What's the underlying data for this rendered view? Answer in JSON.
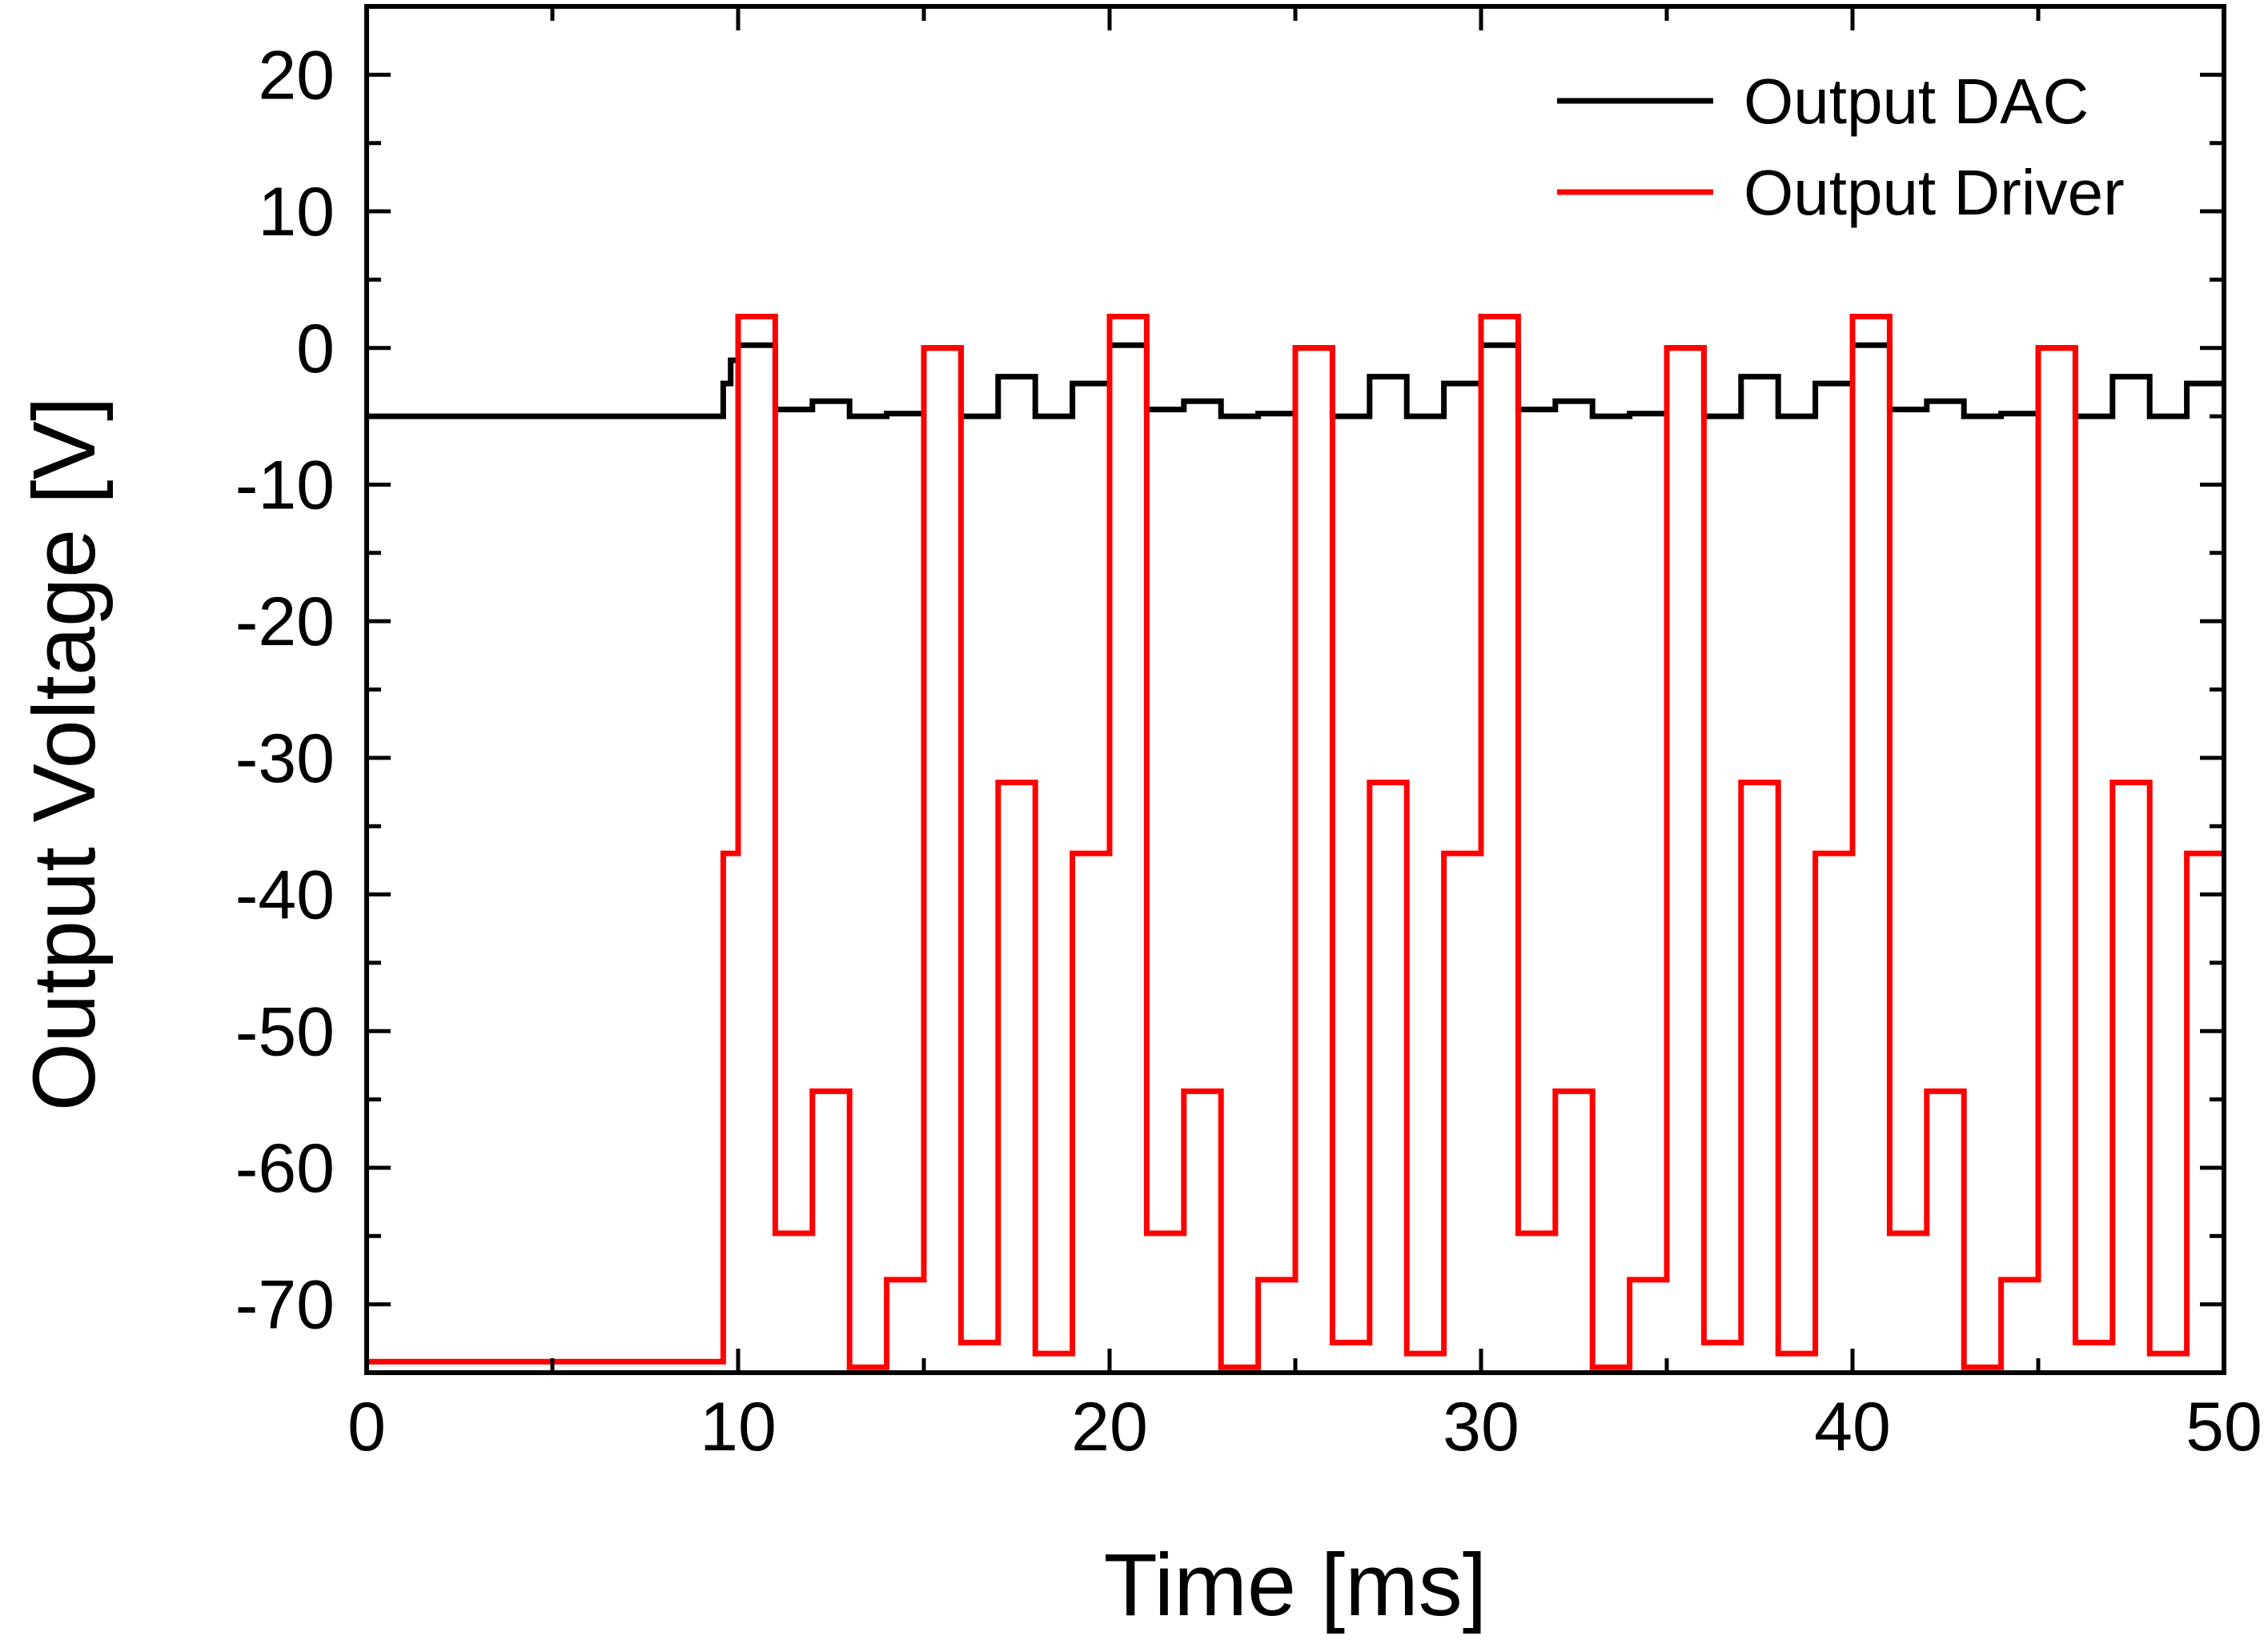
{
  "chart_data": {
    "type": "line",
    "title": "",
    "xlabel": "Time [ms]",
    "ylabel": "Output Voltage [V]",
    "xlim": [
      0,
      50
    ],
    "ylim": [
      -75,
      25
    ],
    "x_ticks": [
      0,
      10,
      20,
      30,
      40,
      50
    ],
    "x_tick_labels": [
      "0",
      "10",
      "20",
      "30",
      "40",
      "50"
    ],
    "y_ticks": [
      20,
      10,
      0,
      -10,
      -20,
      -30,
      -40,
      -50,
      -60,
      -70
    ],
    "y_tick_labels": [
      "20",
      "10",
      "0",
      "-10",
      "-20",
      "-30",
      "-40",
      "-50",
      "-60",
      "-70"
    ],
    "grid": false,
    "legend_position": "top-right",
    "series": [
      {
        "name": "Output DAC",
        "color": "#000000",
        "step": true,
        "x": [
          0,
          9.6,
          9.8,
          10,
          11,
          12,
          13,
          14,
          15,
          16,
          17,
          18,
          19,
          20,
          21,
          22,
          23,
          24,
          25,
          26,
          27,
          28,
          29,
          30,
          31,
          32,
          33,
          34,
          35,
          36,
          37,
          38,
          39,
          40,
          41,
          42,
          43,
          44,
          45,
          46,
          47,
          48,
          49,
          50
        ],
        "values": [
          -5.0,
          -2.6,
          -0.9,
          0.2,
          -4.5,
          -3.9,
          -5.0,
          -4.8,
          0.0,
          -5.0,
          -2.1,
          -5.0,
          -2.6,
          0.2,
          -4.5,
          -3.9,
          -5.0,
          -4.8,
          0.0,
          -5.0,
          -2.1,
          -5.0,
          -2.6,
          0.2,
          -4.5,
          -3.9,
          -5.0,
          -4.8,
          0.0,
          -5.0,
          -2.1,
          -5.0,
          -2.6,
          0.2,
          -4.5,
          -3.9,
          -5.0,
          -4.8,
          0.0,
          -5.0,
          -2.1,
          -5.0,
          -2.6,
          -2.6
        ]
      },
      {
        "name": "Output Driver",
        "color": "#ff0000",
        "step": true,
        "x": [
          0,
          9.6,
          9.8,
          10,
          11,
          12,
          13,
          14,
          15,
          16,
          17,
          18,
          19,
          20,
          21,
          22,
          23,
          24,
          25,
          26,
          27,
          28,
          29,
          30,
          31,
          32,
          33,
          34,
          35,
          36,
          37,
          38,
          39,
          40,
          41,
          42,
          43,
          44,
          45,
          46,
          47,
          48,
          49,
          50
        ],
        "values": [
          -74.2,
          -37.0,
          -37.0,
          2.3,
          -64.8,
          -54.4,
          -74.6,
          -68.2,
          0.0,
          -72.8,
          -31.8,
          -73.6,
          -37.0,
          2.3,
          -64.8,
          -54.4,
          -74.6,
          -68.2,
          0.0,
          -72.8,
          -31.8,
          -73.6,
          -37.0,
          2.3,
          -64.8,
          -54.4,
          -74.6,
          -68.2,
          0.0,
          -72.8,
          -31.8,
          -73.6,
          -37.0,
          2.3,
          -64.8,
          -54.4,
          -74.6,
          -68.2,
          0.0,
          -72.8,
          -31.8,
          -73.6,
          -37.0,
          -37.0
        ]
      }
    ]
  }
}
